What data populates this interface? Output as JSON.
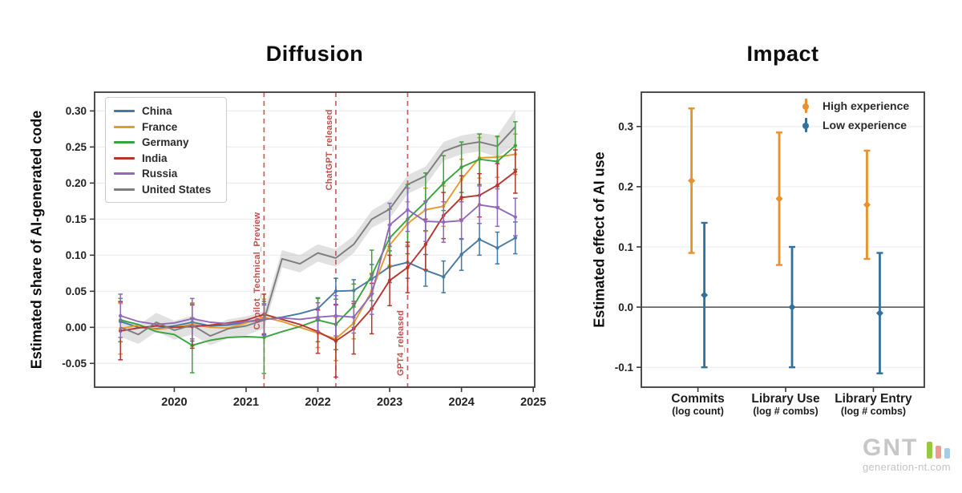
{
  "page": {
    "background": "#ffffff"
  },
  "watermark": {
    "logo_text": "GNT",
    "site": "generation-nt.com",
    "bar_colors": [
      "#97c83f",
      "#f29a90",
      "#a7cde9"
    ]
  },
  "chart_data": [
    {
      "id": "diffusion",
      "type": "line",
      "title": "Diffusion",
      "ylabel": "Estimated share of AI-generated code",
      "xlim": [
        2018.89,
        2025.02
      ],
      "ylim": [
        -0.083,
        0.326
      ],
      "xticks": [
        2020,
        2021,
        2022,
        2023,
        2024,
        2025
      ],
      "xtick_labels": [
        "2020",
        "2021",
        "2022",
        "2023",
        "2024",
        "2025"
      ],
      "yticks": [
        0.3,
        0.25,
        0.2,
        0.15,
        0.1,
        0.05,
        0.0,
        -0.05
      ],
      "ytick_labels": [
        "0.30",
        "0.25",
        "0.20",
        "0.15",
        "0.10",
        "0.05",
        "0.00",
        "-0.05"
      ],
      "grid": true,
      "legend_position": "upper left",
      "x": [
        2019.25,
        2019.5,
        2019.75,
        2020.0,
        2020.25,
        2020.5,
        2020.75,
        2021.0,
        2021.25,
        2021.5,
        2021.75,
        2022.0,
        2022.25,
        2022.5,
        2022.75,
        2023.0,
        2023.25,
        2023.5,
        2023.75,
        2024.0,
        2024.25,
        2024.5,
        2024.75
      ],
      "series": [
        {
          "name": "China",
          "color": "#4679a4",
          "values": [
            0.008,
            0.0,
            -0.002,
            0.002,
            0.007,
            0.002,
            0.003,
            0.007,
            0.011,
            0.014,
            0.019,
            0.026,
            0.05,
            0.051,
            0.067,
            0.084,
            0.09,
            0.079,
            0.07,
            0.101,
            0.122,
            0.11,
            0.124
          ],
          "err": [
            0.028,
            null,
            null,
            null,
            0.026,
            null,
            null,
            null,
            0.02,
            null,
            null,
            0.015,
            0.018,
            0.015,
            0.02,
            0.022,
            0.022,
            0.022,
            0.022,
            0.022,
            0.022,
            0.022,
            0.022
          ]
        },
        {
          "name": "France",
          "color": "#e59a30",
          "values": [
            -0.002,
            0.003,
            -0.003,
            0.0,
            0.004,
            0.0,
            -0.001,
            0.006,
            0.014,
            0.008,
            0.0,
            -0.008,
            -0.016,
            0.006,
            0.05,
            0.114,
            0.144,
            0.163,
            0.168,
            0.205,
            0.235,
            0.236,
            0.24
          ],
          "err": [
            0.035,
            null,
            null,
            null,
            0.03,
            null,
            null,
            null,
            0.025,
            null,
            null,
            0.02,
            0.03,
            0.022,
            0.025,
            0.028,
            0.03,
            0.03,
            0.028,
            0.028,
            0.028,
            0.028,
            0.028
          ]
        },
        {
          "name": "Germany",
          "color": "#3ba33e",
          "values": [
            0.01,
            0.004,
            -0.006,
            -0.01,
            -0.025,
            -0.018,
            -0.014,
            -0.013,
            -0.014,
            -0.006,
            0.001,
            0.01,
            0.004,
            0.03,
            0.072,
            0.124,
            0.15,
            0.174,
            0.2,
            0.222,
            0.233,
            0.23,
            0.252
          ],
          "err": [
            0.03,
            null,
            null,
            null,
            0.038,
            null,
            null,
            null,
            0.05,
            null,
            null,
            0.03,
            0.035,
            0.03,
            0.035,
            0.04,
            0.048,
            0.04,
            0.038,
            0.035,
            0.035,
            0.035,
            0.033
          ]
        },
        {
          "name": "India",
          "color": "#b5352f",
          "values": [
            -0.005,
            -0.001,
            0.002,
            0.0,
            0.001,
            0.003,
            0.006,
            0.01,
            0.018,
            0.011,
            0.004,
            -0.006,
            -0.019,
            -0.002,
            0.026,
            0.065,
            0.083,
            0.115,
            0.155,
            0.18,
            0.183,
            0.197,
            0.216
          ],
          "err": [
            0.04,
            null,
            null,
            null,
            0.03,
            null,
            null,
            null,
            0.028,
            null,
            null,
            0.03,
            0.05,
            0.035,
            0.035,
            0.035,
            0.035,
            0.035,
            0.032,
            0.03,
            0.03,
            0.03,
            0.03
          ]
        },
        {
          "name": "Russia",
          "color": "#9169ba",
          "values": [
            0.016,
            0.008,
            0.004,
            0.006,
            0.012,
            0.007,
            0.005,
            0.008,
            0.011,
            0.013,
            0.011,
            0.014,
            0.016,
            0.014,
            0.046,
            0.142,
            0.163,
            0.147,
            0.146,
            0.148,
            0.17,
            0.166,
            0.153
          ],
          "err": [
            0.03,
            null,
            null,
            null,
            0.028,
            null,
            null,
            null,
            0.022,
            null,
            null,
            0.02,
            0.028,
            0.022,
            0.028,
            0.03,
            0.03,
            0.028,
            0.028,
            0.026,
            0.026,
            0.026,
            0.026
          ]
        },
        {
          "name": "United States",
          "color": "#7d7d7d",
          "values": [
            0.0,
            -0.01,
            0.007,
            -0.004,
            0.003,
            -0.012,
            -0.002,
            0.002,
            0.01,
            0.095,
            0.088,
            0.103,
            0.096,
            0.115,
            0.15,
            0.164,
            0.198,
            0.21,
            0.244,
            0.253,
            0.257,
            0.251,
            0.278
          ],
          "err": null,
          "band": [
            0.013,
            0.013,
            0.013,
            0.013,
            0.013,
            0.013,
            0.013,
            0.013,
            0.012,
            0.012,
            0.012,
            0.012,
            0.012,
            0.012,
            0.012,
            0.013,
            0.013,
            0.013,
            0.013,
            0.013,
            0.013,
            0.015,
            0.024
          ],
          "band_color": "#bdbdbd"
        }
      ],
      "events": [
        {
          "label": "Copilot_Technical_Preview",
          "x": 2021.25
        },
        {
          "label": "ChatGPT_released",
          "x": 2022.25
        },
        {
          "label": "GPT4_released",
          "x": 2023.25
        }
      ],
      "event_color": "#c0504d"
    },
    {
      "id": "impact",
      "type": "errorbar",
      "title": "Impact",
      "ylabel": "Estimated effect of AI use",
      "ylim": [
        -0.133,
        0.357
      ],
      "yticks": [
        0.3,
        0.2,
        0.1,
        0.0,
        -0.1
      ],
      "ytick_labels": [
        "0.3",
        "0.2",
        "0.1",
        "0.0",
        "-0.1"
      ],
      "zero_line": true,
      "grid": true,
      "legend_position": "upper right",
      "categories": [
        {
          "label": "Commits",
          "sub": "(log count)"
        },
        {
          "label": "Library Use",
          "sub": "(log # combs)"
        },
        {
          "label": "Library Entry",
          "sub": "(log # combs)"
        }
      ],
      "series": [
        {
          "name": "High experience",
          "color": "#e8912d",
          "points": [
            {
              "y": 0.21,
              "lo": 0.09,
              "hi": 0.33
            },
            {
              "y": 0.18,
              "lo": 0.07,
              "hi": 0.29
            },
            {
              "y": 0.17,
              "lo": 0.08,
              "hi": 0.26
            }
          ]
        },
        {
          "name": "Low experience",
          "color": "#31719c",
          "points": [
            {
              "y": 0.02,
              "lo": -0.1,
              "hi": 0.14
            },
            {
              "y": 0.0,
              "lo": -0.1,
              "hi": 0.1
            },
            {
              "y": -0.01,
              "lo": -0.11,
              "hi": 0.09
            }
          ]
        }
      ]
    }
  ]
}
